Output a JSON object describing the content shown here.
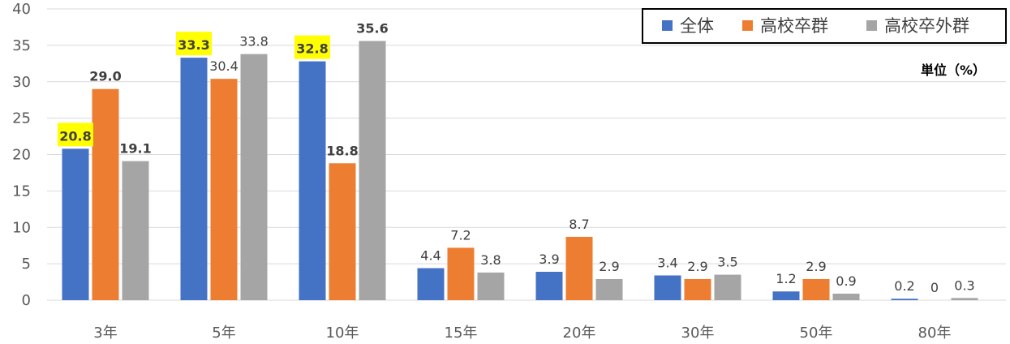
{
  "chart_data": {
    "type": "bar",
    "categories": [
      "3年",
      "5年",
      "10年",
      "15年",
      "20年",
      "30年",
      "50年",
      "80年"
    ],
    "series": [
      {
        "name": "全体",
        "color": "#4472C4",
        "values": [
          20.8,
          33.3,
          32.8,
          4.4,
          3.9,
          3.4,
          1.2,
          0.2
        ],
        "labels": [
          "20.8",
          "33.3",
          "32.8",
          "4.4",
          "3.9",
          "3.4",
          "1.2",
          "0.2"
        ],
        "bold": [
          true,
          true,
          true,
          false,
          false,
          false,
          false,
          false
        ],
        "highlight": [
          true,
          true,
          true,
          false,
          false,
          false,
          false,
          false
        ]
      },
      {
        "name": "高校卒群",
        "color": "#ED7D31",
        "values": [
          29.0,
          30.4,
          18.8,
          7.2,
          8.7,
          2.9,
          2.9,
          0
        ],
        "labels": [
          "29.0",
          "30.4",
          "18.8",
          "7.2",
          "8.7",
          "2.9",
          "2.9",
          "0"
        ],
        "bold": [
          true,
          false,
          true,
          false,
          false,
          false,
          false,
          false
        ],
        "highlight": [
          false,
          false,
          false,
          false,
          false,
          false,
          false,
          false
        ]
      },
      {
        "name": "高校卒外群",
        "color": "#A5A5A5",
        "values": [
          19.1,
          33.8,
          35.6,
          3.8,
          2.9,
          3.5,
          0.9,
          0.3
        ],
        "labels": [
          "19.1",
          "33.8",
          "35.6",
          "3.8",
          "2.9",
          "3.5",
          "0.9",
          "0.3"
        ],
        "bold": [
          true,
          false,
          true,
          false,
          false,
          false,
          false,
          false
        ],
        "highlight": [
          false,
          false,
          false,
          false,
          false,
          false,
          false,
          false
        ]
      }
    ],
    "yticks": [
      "0",
      "5",
      "10",
      "15",
      "20",
      "25",
      "30",
      "35",
      "40"
    ],
    "ylim": [
      0,
      40
    ],
    "unit_label": "単位（%）",
    "highlight_color": "#FFFF00",
    "grid": true,
    "legend_position": "top-right"
  }
}
